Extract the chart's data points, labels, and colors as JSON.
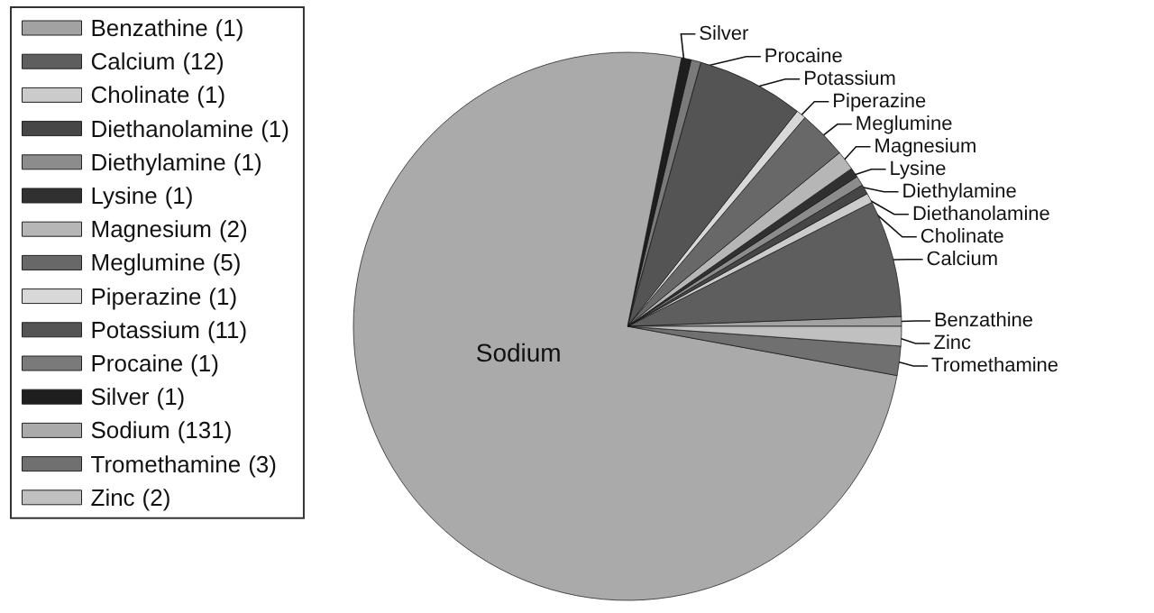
{
  "chart_data": {
    "type": "pie",
    "categories": [
      "Benzathine",
      "Calcium",
      "Cholinate",
      "Diethanolamine",
      "Diethylamine",
      "Lysine",
      "Magnesium",
      "Meglumine",
      "Piperazine",
      "Potassium",
      "Procaine",
      "Silver",
      "Sodium",
      "Tromethamine",
      "Zinc"
    ],
    "values": [
      1,
      12,
      1,
      1,
      1,
      1,
      2,
      5,
      1,
      11,
      1,
      1,
      131,
      3,
      2
    ],
    "colors": [
      "#a2a2a2",
      "#5e5e5e",
      "#cbcbcb",
      "#464646",
      "#8c8c8c",
      "#303030",
      "#b6b6b6",
      "#686868",
      "#d8d8d8",
      "#545454",
      "#7a7a7a",
      "#1e1e1e",
      "#aaaaaa",
      "#707070",
      "#c0c0c0"
    ],
    "value_labels": [
      "(1)",
      "(12)",
      "(1)",
      "(1)",
      "(1)",
      "(1)",
      "(2)",
      "(5)",
      "(1)",
      "(11)",
      "(1)",
      "(1)",
      "(131)",
      "(3)",
      "(2)"
    ],
    "legend": "top left"
  }
}
